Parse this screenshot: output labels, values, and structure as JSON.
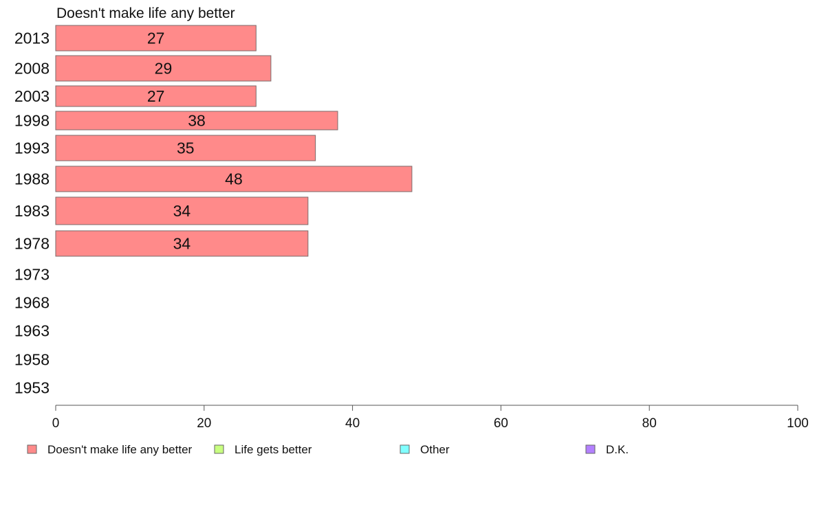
{
  "chart_data": {
    "type": "bar",
    "orientation": "horizontal",
    "title": "Doesn't make life any better",
    "categories": [
      "2013",
      "2008",
      "2003",
      "1998",
      "1993",
      "1988",
      "1983",
      "1978",
      "1973",
      "1968",
      "1963",
      "1958",
      "1953"
    ],
    "series": [
      {
        "name": "Doesn't make life any better",
        "color": "#ff8a8a",
        "values": [
          27,
          29,
          27,
          38,
          35,
          48,
          34,
          34,
          null,
          null,
          null,
          null,
          null
        ],
        "labels": [
          "27",
          "29",
          "27",
          "38",
          "35",
          "48",
          "34",
          "34",
          "",
          "",
          "",
          "",
          ""
        ]
      }
    ],
    "xlim": [
      0,
      100
    ],
    "xticks": [
      0,
      20,
      40,
      60,
      80,
      100
    ],
    "xtick_labels": [
      "0",
      "20",
      "40",
      "60",
      "80",
      "100"
    ],
    "grid": false,
    "legend_position": "bottom",
    "legend": [
      {
        "label": "Doesn't make life any better",
        "color": "#ff8a8a"
      },
      {
        "label": "Life gets better",
        "color": "#c8ff80"
      },
      {
        "label": "Other",
        "color": "#80ffff"
      },
      {
        "label": "D.K.",
        "color": "#b380ff"
      }
    ]
  }
}
